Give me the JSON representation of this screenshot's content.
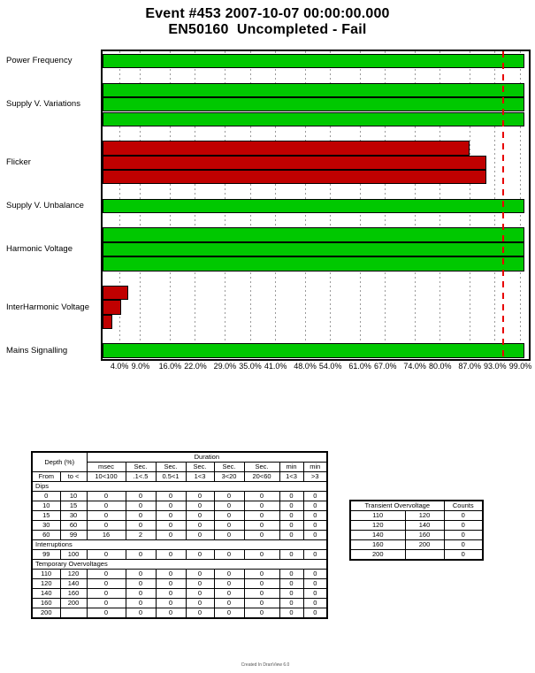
{
  "title": {
    "line1": "Event #453 2007-10-07 00:00:00.000",
    "line2": "EN50160  Uncompleted - Fail"
  },
  "chart_data": {
    "type": "bar",
    "orientation": "horizontal",
    "title": "EN50160 compliance by parameter (% of limit)",
    "xlim": [
      0,
      101
    ],
    "x_tick_values": [
      4,
      9,
      16,
      22,
      29,
      35,
      41,
      48,
      54,
      61,
      67,
      74,
      80,
      87,
      93,
      99
    ],
    "x_tick_labels": [
      "4.0%",
      "9.0%",
      "16.0%",
      "22.0%",
      "29.0%",
      "35.0%",
      "41.0%",
      "48.0%",
      "54.0%",
      "61.0%",
      "67.0%",
      "74.0%",
      "80.0%",
      "87.0%",
      "93.0%",
      "99.0%"
    ],
    "threshold_percent": 95,
    "grid": true,
    "colors": {
      "pass": "#00c800",
      "fail": "#c00000",
      "threshold": "#e80000"
    },
    "groups": [
      {
        "label": "Power Frequency",
        "status": "pass",
        "values": [
          100
        ]
      },
      {
        "label": "Supply V. Variations",
        "status": "pass",
        "values": [
          100,
          100,
          100
        ]
      },
      {
        "label": "Flicker",
        "status": "fail",
        "values": [
          87,
          91,
          91
        ]
      },
      {
        "label": "Supply V. Unbalance",
        "status": "pass",
        "values": [
          100
        ]
      },
      {
        "label": "Harmonic Voltage",
        "status": "pass",
        "values": [
          100,
          100,
          100
        ]
      },
      {
        "label": "InterHarmonic Voltage",
        "status": "fail",
        "values": [
          6,
          4.5,
          2.3
        ]
      },
      {
        "label": "Mains Signalling",
        "status": "pass",
        "values": [
          100
        ]
      }
    ]
  },
  "dips_table": {
    "depth_header": "Depth (%)",
    "duration_header": "Duration",
    "unit_row": [
      "msec",
      "Sec.",
      "Sec.",
      "Sec.",
      "Sec.",
      "Sec.",
      "min",
      "min"
    ],
    "range_row": [
      "From",
      "to <",
      "10<100",
      ".1<.5",
      "0.5<1",
      "1<3",
      "3<20",
      "20<60",
      "1<3",
      ">3"
    ],
    "sections": [
      {
        "label": "Dips",
        "rows": [
          [
            "0",
            "10",
            "0",
            "0",
            "0",
            "0",
            "0",
            "0",
            "0",
            "0"
          ],
          [
            "10",
            "15",
            "0",
            "0",
            "0",
            "0",
            "0",
            "0",
            "0",
            "0"
          ],
          [
            "15",
            "30",
            "0",
            "0",
            "0",
            "0",
            "0",
            "0",
            "0",
            "0"
          ],
          [
            "30",
            "60",
            "0",
            "0",
            "0",
            "0",
            "0",
            "0",
            "0",
            "0"
          ],
          [
            "60",
            "99",
            "16",
            "2",
            "0",
            "0",
            "0",
            "0",
            "0",
            "0"
          ]
        ]
      },
      {
        "label": "Interruptions",
        "rows": [
          [
            "99",
            "100",
            "0",
            "0",
            "0",
            "0",
            "0",
            "0",
            "0",
            "0"
          ]
        ]
      },
      {
        "label": "Temporary Overvoltages",
        "rows": [
          [
            "110",
            "120",
            "0",
            "0",
            "0",
            "0",
            "0",
            "0",
            "0",
            "0"
          ],
          [
            "120",
            "140",
            "0",
            "0",
            "0",
            "0",
            "0",
            "0",
            "0",
            "0"
          ],
          [
            "140",
            "160",
            "0",
            "0",
            "0",
            "0",
            "0",
            "0",
            "0",
            "0"
          ],
          [
            "160",
            "200",
            "0",
            "0",
            "0",
            "0",
            "0",
            "0",
            "0",
            "0"
          ],
          [
            "200",
            "",
            "0",
            "0",
            "0",
            "0",
            "0",
            "0",
            "0",
            "0"
          ]
        ]
      }
    ]
  },
  "transient_table": {
    "header_label": "Transient Overvoltage",
    "counts_label": "Counts",
    "rows": [
      [
        "110",
        "120",
        "0"
      ],
      [
        "120",
        "140",
        "0"
      ],
      [
        "140",
        "160",
        "0"
      ],
      [
        "160",
        "200",
        "0"
      ],
      [
        "200",
        "",
        "0"
      ]
    ]
  },
  "footer": "Created In DranView 6.0"
}
